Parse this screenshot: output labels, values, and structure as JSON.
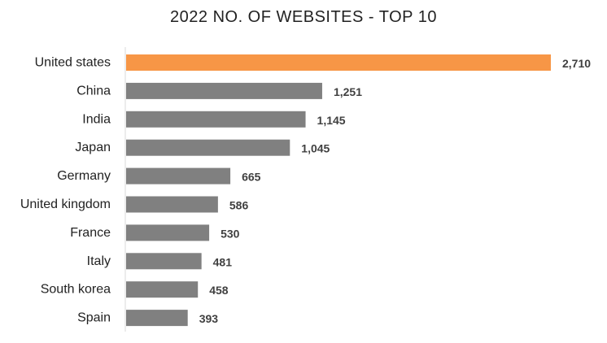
{
  "chart_data": {
    "type": "bar",
    "orientation": "horizontal",
    "title": "2022 NO. OF WEBSITES - TOP 10",
    "categories": [
      "United states",
      "China",
      "India",
      "Japan",
      "Germany",
      "United kingdom",
      "France",
      "Italy",
      "South korea",
      "Spain"
    ],
    "values": [
      2710,
      1251,
      1145,
      1045,
      665,
      586,
      530,
      481,
      458,
      393
    ],
    "value_labels": [
      "2,710",
      "1,251",
      "1,145",
      "1,045",
      "665",
      "586",
      "530",
      "481",
      "458",
      "393"
    ],
    "xlim": [
      0,
      2710
    ],
    "grid": false,
    "legend": "none",
    "colors": {
      "highlight": "#F79646",
      "default": "#808080",
      "axis": "#D9D9D9"
    }
  }
}
